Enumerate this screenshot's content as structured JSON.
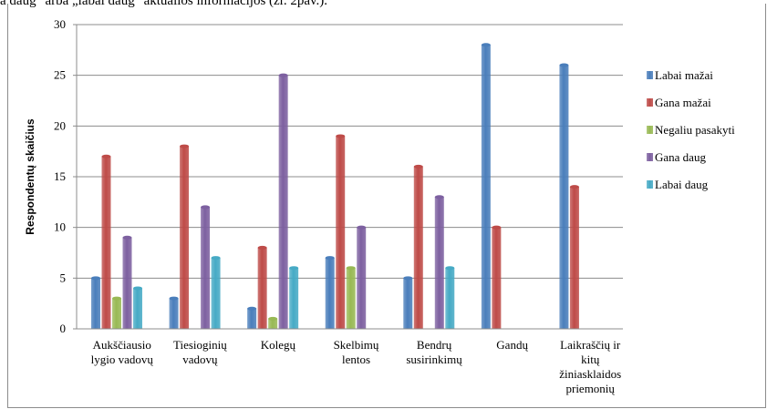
{
  "caption": "a daug\" arba „labai daug\" aktualios informacijos (žr. 2pav.).",
  "chart_data": {
    "type": "bar",
    "ylabel": "Respondentų skaičius",
    "xlabel": "",
    "ylim": [
      0,
      30
    ],
    "yticks": [
      0,
      5,
      10,
      15,
      20,
      25,
      30
    ],
    "grid": true,
    "legend_position": "right",
    "categories": [
      [
        "Aukščiausio",
        "lygio vadovų"
      ],
      [
        "Tiesioginių",
        "vadovų"
      ],
      [
        "Kolegų"
      ],
      [
        "Skelbimų",
        "lentos"
      ],
      [
        "Bendrų",
        "susirinkimų"
      ],
      [
        "Gandų"
      ],
      [
        "Laikraščių ir",
        "kitų",
        "žiniasklaidos",
        "priemonių"
      ]
    ],
    "series": [
      {
        "name": "Labai mažai",
        "color": "#4a7ebb",
        "values": [
          5,
          3,
          2,
          7,
          5,
          28,
          26
        ]
      },
      {
        "name": "Gana mažai",
        "color": "#be4b48",
        "values": [
          17,
          18,
          8,
          19,
          16,
          10,
          14
        ]
      },
      {
        "name": "Negaliu pasakyti",
        "color": "#98b954",
        "values": [
          3,
          0,
          1,
          6,
          0,
          0,
          0
        ]
      },
      {
        "name": "Gana daug",
        "color": "#7d60a0",
        "values": [
          9,
          12,
          25,
          10,
          13,
          0,
          0
        ]
      },
      {
        "name": "Labai daug",
        "color": "#46aac5",
        "values": [
          4,
          7,
          6,
          0,
          6,
          0,
          0
        ]
      }
    ]
  }
}
